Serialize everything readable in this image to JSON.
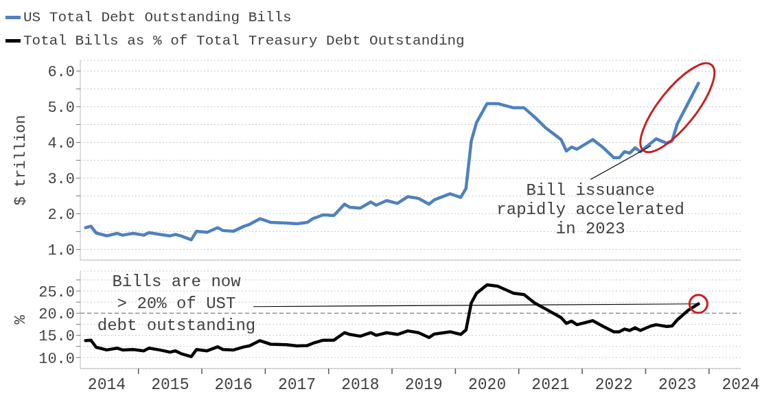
{
  "chart_data": [
    {
      "type": "line",
      "ylabel": "$ trillion",
      "legend": "top left",
      "grid": "y",
      "tick_labels": "y",
      "x": [
        "2014-03",
        "2014-04",
        "2014-05",
        "2014-07",
        "2014-09",
        "2014-10",
        "2014-12",
        "2015-02",
        "2015-03",
        "2015-05",
        "2015-07",
        "2015-08",
        "2015-09",
        "2015-11",
        "2015-12",
        "2016-02",
        "2016-04",
        "2016-05",
        "2016-07",
        "2016-09",
        "2016-10",
        "2016-12",
        "2017-02",
        "2017-05",
        "2017-07",
        "2017-09",
        "2017-10",
        "2017-12",
        "2018-02",
        "2018-04",
        "2018-05",
        "2018-07",
        "2018-09",
        "2018-10",
        "2018-12",
        "2019-02",
        "2019-04",
        "2019-06",
        "2019-08",
        "2019-09",
        "2019-12",
        "2020-02",
        "2020-03",
        "2020-04",
        "2020-05",
        "2020-07",
        "2020-09",
        "2020-12",
        "2021-02",
        "2021-04",
        "2021-06",
        "2021-09",
        "2021-10",
        "2021-11",
        "2021-12",
        "2022-03",
        "2022-05",
        "2022-07",
        "2022-08",
        "2022-09",
        "2022-10",
        "2022-11",
        "2022-12",
        "2023-02",
        "2023-03",
        "2023-05",
        "2023-06",
        "2023-07",
        "2023-09",
        "2023-11"
      ],
      "series": [
        {
          "name": "US Total Debt Outstanding Bills",
          "color": "#4f81bd",
          "values": [
            1.61,
            1.65,
            1.46,
            1.38,
            1.45,
            1.4,
            1.45,
            1.4,
            1.47,
            1.42,
            1.38,
            1.42,
            1.38,
            1.27,
            1.51,
            1.48,
            1.61,
            1.53,
            1.51,
            1.65,
            1.7,
            1.86,
            1.76,
            1.74,
            1.72,
            1.76,
            1.86,
            1.97,
            1.95,
            2.27,
            2.18,
            2.16,
            2.33,
            2.24,
            2.37,
            2.29,
            2.48,
            2.43,
            2.27,
            2.39,
            2.56,
            2.46,
            2.71,
            4.04,
            4.56,
            5.09,
            5.09,
            4.97,
            4.97,
            4.71,
            4.42,
            4.08,
            3.76,
            3.87,
            3.81,
            4.08,
            3.85,
            3.57,
            3.57,
            3.74,
            3.7,
            3.85,
            3.74,
            3.98,
            4.1,
            3.98,
            4.04,
            4.52,
            5.09,
            5.66
          ]
        }
      ],
      "xlim": [
        "2014-02",
        "2024-07"
      ],
      "ylim": [
        0.7,
        6.3
      ],
      "yticks": [
        {
          "value": 1,
          "label": "1.0"
        },
        {
          "value": 1.5,
          "label": null
        },
        {
          "value": 2,
          "label": "2.0"
        },
        {
          "value": 2.5,
          "label": null
        },
        {
          "value": 3,
          "label": "3.0"
        },
        {
          "value": 3.5,
          "label": null
        },
        {
          "value": 4,
          "label": "4.0"
        },
        {
          "value": 4.5,
          "label": null
        },
        {
          "value": 5,
          "label": "5.0"
        },
        {
          "value": 5.5,
          "label": null
        },
        {
          "value": 6,
          "label": "6.0"
        }
      ],
      "annotations": [
        {
          "text": "Bill issuance\nrapidly accelerated\nin 2023",
          "x": "2023-02",
          "y": 3.98
        }
      ]
    },
    {
      "type": "line",
      "ylabel": "%",
      "legend": "top left",
      "grid": "y",
      "x": [
        "2014-03",
        "2014-04",
        "2014-05",
        "2014-07",
        "2014-09",
        "2014-10",
        "2014-12",
        "2015-02",
        "2015-03",
        "2015-05",
        "2015-07",
        "2015-08",
        "2015-09",
        "2015-11",
        "2015-12",
        "2016-02",
        "2016-04",
        "2016-05",
        "2016-07",
        "2016-09",
        "2016-10",
        "2016-12",
        "2017-02",
        "2017-05",
        "2017-07",
        "2017-09",
        "2017-10",
        "2017-12",
        "2018-02",
        "2018-04",
        "2018-05",
        "2018-07",
        "2018-09",
        "2018-10",
        "2018-12",
        "2019-02",
        "2019-04",
        "2019-06",
        "2019-08",
        "2019-09",
        "2019-12",
        "2020-02",
        "2020-03",
        "2020-04",
        "2020-05",
        "2020-07",
        "2020-09",
        "2020-12",
        "2021-02",
        "2021-04",
        "2021-06",
        "2021-09",
        "2021-10",
        "2021-11",
        "2021-12",
        "2022-03",
        "2022-05",
        "2022-07",
        "2022-08",
        "2022-09",
        "2022-10",
        "2022-11",
        "2022-12",
        "2023-02",
        "2023-03",
        "2023-05",
        "2023-06",
        "2023-07",
        "2023-09",
        "2023-11"
      ],
      "series": [
        {
          "name": "Total Bills as % of Total Treasury Debt Outstanding",
          "color": "#000000",
          "values": [
            13.8,
            13.9,
            12.3,
            11.7,
            12.1,
            11.7,
            11.8,
            11.5,
            12.1,
            11.7,
            11.2,
            11.5,
            10.9,
            10.2,
            11.8,
            11.5,
            12.4,
            11.8,
            11.7,
            12.4,
            12.6,
            13.8,
            13.0,
            12.9,
            12.6,
            12.7,
            13.2,
            13.9,
            13.9,
            15.6,
            15.2,
            14.8,
            15.6,
            15.0,
            15.6,
            15.2,
            16.0,
            15.6,
            14.5,
            15.3,
            15.8,
            15.2,
            16.2,
            22.3,
            24.5,
            26.4,
            26.1,
            24.5,
            24.2,
            22.3,
            21.0,
            19.0,
            17.7,
            18.2,
            17.4,
            18.3,
            17.0,
            15.8,
            15.8,
            16.4,
            16.1,
            16.7,
            16.1,
            17.1,
            17.4,
            17.0,
            17.1,
            18.5,
            20.6,
            22.1
          ]
        }
      ],
      "xlim": [
        "2014-02",
        "2024-07"
      ],
      "xticks": [
        {
          "value": "2014-07",
          "label": "2014"
        },
        {
          "value": "2015-01",
          "label": null
        },
        {
          "value": "2015-07",
          "label": "2015"
        },
        {
          "value": "2016-01",
          "label": null
        },
        {
          "value": "2016-07",
          "label": "2016"
        },
        {
          "value": "2017-01",
          "label": null
        },
        {
          "value": "2017-07",
          "label": "2017"
        },
        {
          "value": "2018-01",
          "label": null
        },
        {
          "value": "2018-07",
          "label": "2018"
        },
        {
          "value": "2019-01",
          "label": null
        },
        {
          "value": "2019-07",
          "label": "2019"
        },
        {
          "value": "2020-01",
          "label": null
        },
        {
          "value": "2020-07",
          "label": "2020"
        },
        {
          "value": "2021-01",
          "label": null
        },
        {
          "value": "2021-07",
          "label": "2021"
        },
        {
          "value": "2022-01",
          "label": null
        },
        {
          "value": "2022-07",
          "label": "2022"
        },
        {
          "value": "2023-01",
          "label": null
        },
        {
          "value": "2023-07",
          "label": "2023"
        },
        {
          "value": "2024-01",
          "label": null
        },
        {
          "value": "2024-07",
          "label": "2024"
        }
      ],
      "ylim": [
        7.5,
        29.5
      ],
      "yticks": [
        {
          "value": 10,
          "label": "10.0"
        },
        {
          "value": 12.5,
          "label": null
        },
        {
          "value": 15,
          "label": "15.0"
        },
        {
          "value": 17.5,
          "label": null
        },
        {
          "value": 20,
          "label": "20.0"
        },
        {
          "value": 22.5,
          "label": null
        },
        {
          "value": 25,
          "label": "25.0"
        },
        {
          "value": 27.5,
          "label": null
        }
      ],
      "ref_lines": [
        {
          "axis": "y",
          "value": 20,
          "color": "#808080",
          "line_style": "dashed"
        }
      ],
      "annotations": [
        {
          "text": "Bills are now\n> 20% of UST\ndebt outstanding",
          "x": "2023-11",
          "y": 22.1
        }
      ]
    }
  ]
}
